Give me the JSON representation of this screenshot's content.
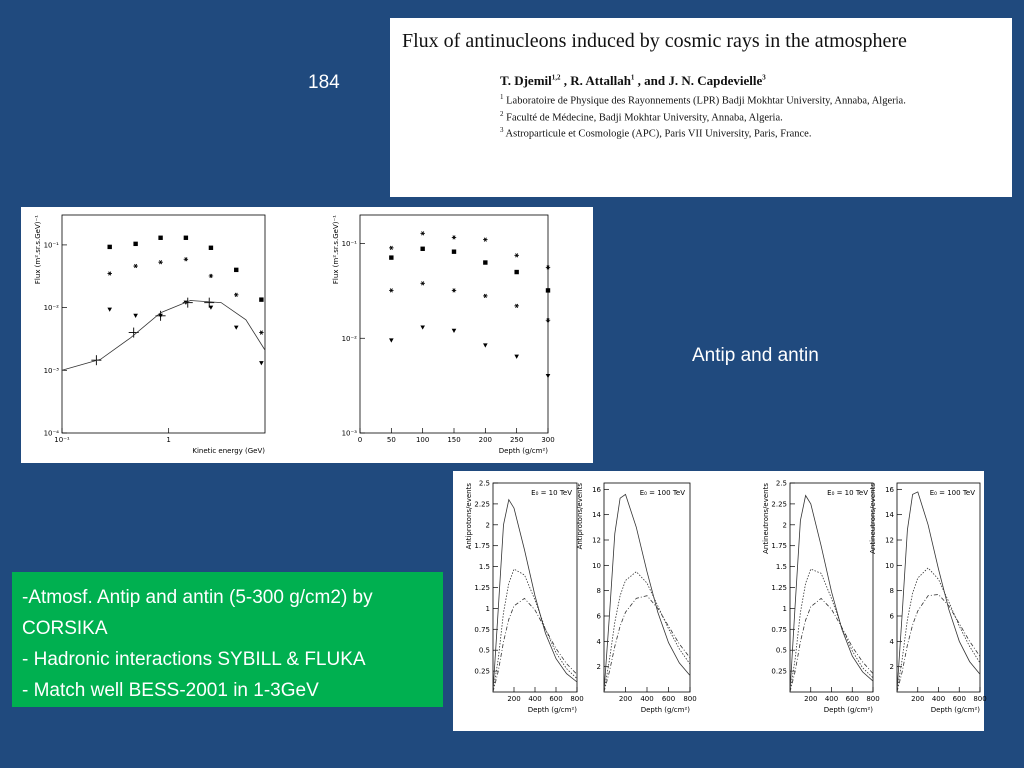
{
  "slide_number": "184",
  "paper": {
    "title": "Flux of antinucleons induced by cosmic rays in the atmosphere",
    "authors": [
      {
        "name": "T. Djemil",
        "affil": "1,2"
      },
      {
        "name": " , R. Attallah",
        "affil": "1"
      },
      {
        "name": " , and J. N. Capdevielle",
        "affil": "3"
      }
    ],
    "affiliations": [
      {
        "num": "1",
        "text": "Laboratoire de Physique des Rayonnements (LPR) Badji Mokhtar University, Annaba, Algeria."
      },
      {
        "num": "2",
        "text": "Faculté de Médecine, Badji Mokhtar University, Annaba, Algeria."
      },
      {
        "num": "3",
        "text": "Astroparticule et Cosmologie (APC), Paris VII University, Paris, France."
      }
    ]
  },
  "caption": "Antip and antin",
  "bullets": [
    "-Atmosf. Antip and antin (5-300 g/cm2) by CORSIKA",
    "- Hadronic interactions SYBILL & FLUKA",
    "- Match well BESS-2001 in 1-3GeV"
  ],
  "left_figure": {
    "plots": [
      {
        "type": "scatter",
        "xlabel": "Kinetic energy (GeV)",
        "ylabel": "Flux (m².sr.s.GeV)⁻¹",
        "xscale": "log",
        "yscale": "log",
        "xlim": [
          0.1,
          8
        ],
        "ylim": [
          0.0001,
          0.3
        ],
        "xticks": [
          {
            "value": 0.1,
            "label": "10⁻¹"
          },
          1
        ],
        "yticks": [
          {
            "value": 0.1,
            "label": "10⁻¹"
          },
          {
            "value": 0.01,
            "label": "10⁻²"
          },
          {
            "value": 0.001,
            "label": "10⁻³"
          },
          {
            "value": 0.0001,
            "label": "10⁻⁴"
          }
        ],
        "series": [
          {
            "marker": "square",
            "x": [
              0.28,
              0.49,
              0.84,
              1.45,
              2.49,
              4.3,
              7.4
            ],
            "values": [
              0.093,
              0.104,
              0.13,
              0.13,
              0.09,
              0.04,
              0.0134
            ]
          },
          {
            "marker": "star",
            "x": [
              0.28,
              0.49,
              0.84,
              1.45,
              2.49,
              4.3,
              7.4
            ],
            "values": [
              0.035,
              0.046,
              0.053,
              0.059,
              0.032,
              0.016,
              0.004
            ]
          },
          {
            "marker": "triangle",
            "x": [
              0.28,
              0.49,
              0.84,
              1.45,
              2.49,
              4.3,
              7.4
            ],
            "values": [
              0.0093,
              0.0074,
              0.0074,
              0.012,
              0.01,
              0.0048,
              0.0013
            ]
          },
          {
            "marker": "cross",
            "x": [
              0.21,
              0.47,
              0.84,
              1.51,
              2.4
            ],
            "values": [
              0.00145,
              0.004,
              0.0074,
              0.012,
              0.012
            ]
          },
          {
            "style": "solid",
            "x": [
              0.1,
              0.23,
              0.44,
              0.84,
              1.6,
              3.1,
              5.3,
              8
            ],
            "values": [
              0.001,
              0.0015,
              0.0033,
              0.0083,
              0.013,
              0.012,
              0.0064,
              0.0021
            ]
          }
        ]
      },
      {
        "type": "scatter",
        "xlabel": "Depth (g/cm²)",
        "ylabel": "Flux (m².sr.s.GeV)⁻¹",
        "xscale": "linear",
        "yscale": "log",
        "xlim": [
          0,
          300
        ],
        "ylim": [
          0.001,
          0.2
        ],
        "xticks": [
          0,
          50,
          100,
          150,
          200,
          250,
          300
        ],
        "yticks": [
          {
            "value": 0.1,
            "label": "10⁻¹"
          },
          {
            "value": 0.01,
            "label": "10⁻²"
          },
          {
            "value": 0.001,
            "label": "10⁻³"
          }
        ],
        "series": [
          {
            "marker": "star",
            "x": [
              50,
              100,
              150,
              200,
              250,
              300
            ],
            "values": [
              0.09,
              0.128,
              0.116,
              0.11,
              0.075,
              0.056
            ]
          },
          {
            "marker": "square",
            "x": [
              50,
              100,
              150,
              200,
              250,
              300
            ],
            "values": [
              0.071,
              0.088,
              0.082,
              0.063,
              0.05,
              0.032
            ]
          },
          {
            "marker": "star",
            "x": [
              50,
              100,
              150,
              200,
              250,
              300
            ],
            "values": [
              0.032,
              0.038,
              0.032,
              0.028,
              0.022,
              0.0155
            ]
          },
          {
            "marker": "triangle",
            "x": [
              50,
              100,
              150,
              200,
              250,
              300
            ],
            "values": [
              0.0095,
              0.013,
              0.012,
              0.0084,
              0.0064,
              0.004
            ]
          }
        ]
      }
    ]
  },
  "bottom_figure": {
    "plots": [
      {
        "type": "line",
        "annotation": "E₀ = 10 TeV",
        "xlabel": "Depth (g/cm²)",
        "ylabel": "Antiprotons/events",
        "xscale": "linear",
        "yscale": "linear",
        "xlim": [
          0,
          800
        ],
        "ylim": [
          0,
          2.5
        ],
        "xticks": [
          200,
          400,
          600,
          800
        ],
        "yticks": [
          0.25,
          0.5,
          0.75,
          1,
          1.25,
          1.5,
          1.75,
          2,
          2.25,
          2.5
        ],
        "series": [
          {
            "style": "solid",
            "x": [
              0,
              50,
              100,
              150,
              200,
              300,
              400,
              500,
              600,
              700,
              800
            ],
            "values": [
              0,
              1.0,
              2.0,
              2.3,
              2.2,
              1.7,
              1.15,
              0.7,
              0.4,
              0.22,
              0.12
            ]
          },
          {
            "style": "dotted",
            "x": [
              0,
              50,
              100,
              150,
              200,
              300,
              400,
              500,
              600,
              700,
              800
            ],
            "values": [
              0,
              0.4,
              0.95,
              1.3,
              1.47,
              1.4,
              1.1,
              0.75,
              0.47,
              0.28,
              0.16
            ]
          },
          {
            "style": "dashdot",
            "x": [
              0,
              50,
              100,
              150,
              200,
              300,
              400,
              500,
              600,
              700,
              800
            ],
            "values": [
              0,
              0.25,
              0.6,
              0.87,
              1.03,
              1.12,
              0.98,
              0.75,
              0.52,
              0.34,
              0.21
            ]
          }
        ]
      },
      {
        "type": "line",
        "annotation": "E₀ = 100 TeV",
        "xlabel": "Depth (g/cm²)",
        "ylabel": "Antiprotons/events",
        "xscale": "linear",
        "yscale": "linear",
        "xlim": [
          0,
          800
        ],
        "ylim": [
          0,
          16.5
        ],
        "xticks": [
          200,
          400,
          600,
          800
        ],
        "yticks": [
          2,
          4,
          6,
          8,
          10,
          12,
          14,
          16
        ],
        "series": [
          {
            "style": "solid",
            "x": [
              0,
              50,
              100,
              150,
              200,
              300,
              400,
              500,
              600,
              700,
              800
            ],
            "values": [
              0,
              6,
              12.5,
              15.3,
              15.6,
              13,
              9.5,
              6.3,
              3.9,
              2.3,
              1.3
            ]
          },
          {
            "style": "dotted",
            "x": [
              0,
              50,
              100,
              150,
              200,
              300,
              400,
              500,
              600,
              700,
              800
            ],
            "values": [
              0,
              2.5,
              5.5,
              7.6,
              8.8,
              9.5,
              8.6,
              6.8,
              5,
              3.4,
              2.2
            ]
          },
          {
            "style": "dashdot",
            "x": [
              0,
              50,
              100,
              150,
              200,
              300,
              400,
              500,
              600,
              700,
              800
            ],
            "values": [
              0,
              1.6,
              3.6,
              5.2,
              6.3,
              7.4,
              7.6,
              6.6,
              5.2,
              3.8,
              2.7
            ]
          }
        ]
      },
      {
        "type": "line",
        "annotation": "E₀ = 10 TeV",
        "xlabel": "Depth (g/cm²)",
        "ylabel": "Antineutrons/events",
        "xscale": "linear",
        "yscale": "linear",
        "xlim": [
          0,
          800
        ],
        "ylim": [
          0,
          2.5
        ],
        "xticks": [
          200,
          400,
          600,
          800
        ],
        "yticks": [
          0.25,
          0.5,
          0.75,
          1,
          1.25,
          1.5,
          1.75,
          2,
          2.25,
          2.5
        ],
        "series": [
          {
            "style": "solid",
            "x": [
              0,
              50,
              100,
              150,
              200,
              300,
              400,
              500,
              600,
              700,
              800
            ],
            "values": [
              0,
              1.05,
              2.05,
              2.35,
              2.25,
              1.75,
              1.2,
              0.75,
              0.43,
              0.24,
              0.13
            ]
          },
          {
            "style": "dotted",
            "x": [
              0,
              50,
              100,
              150,
              200,
              300,
              400,
              500,
              600,
              700,
              800
            ],
            "values": [
              0,
              0.4,
              0.95,
              1.3,
              1.47,
              1.42,
              1.12,
              0.77,
              0.49,
              0.29,
              0.17
            ]
          },
          {
            "style": "dashdot",
            "x": [
              0,
              50,
              100,
              150,
              200,
              300,
              400,
              500,
              600,
              700,
              800
            ],
            "values": [
              0,
              0.25,
              0.6,
              0.86,
              1.02,
              1.12,
              0.99,
              0.77,
              0.54,
              0.36,
              0.22
            ]
          }
        ]
      },
      {
        "type": "line",
        "annotation": "E₀ = 100 TeV",
        "xlabel": "Depth (g/cm²)",
        "ylabel": "Antineutrons/events",
        "xscale": "linear",
        "yscale": "linear",
        "xlim": [
          0,
          800
        ],
        "ylim": [
          0,
          16.5
        ],
        "xticks": [
          200,
          400,
          600,
          800
        ],
        "yticks": [
          2,
          4,
          6,
          8,
          10,
          12,
          14,
          16
        ],
        "series": [
          {
            "style": "solid",
            "x": [
              0,
              50,
              100,
              150,
              200,
              300,
              400,
              500,
              600,
              700,
              800
            ],
            "values": [
              0,
              6.2,
              12.8,
              15.6,
              15.8,
              13.2,
              9.7,
              6.5,
              4,
              2.4,
              1.4
            ]
          },
          {
            "style": "dotted",
            "x": [
              0,
              50,
              100,
              150,
              200,
              300,
              400,
              500,
              600,
              700,
              800
            ],
            "values": [
              0,
              2.6,
              5.7,
              7.8,
              9.0,
              9.8,
              8.9,
              7.1,
              5.2,
              3.6,
              2.3
            ]
          },
          {
            "style": "dashdot",
            "x": [
              0,
              50,
              100,
              150,
              200,
              300,
              400,
              500,
              600,
              700,
              800
            ],
            "values": [
              0,
              1.6,
              3.7,
              5.3,
              6.4,
              7.6,
              7.7,
              6.8,
              5.4,
              4,
              2.8
            ]
          }
        ]
      }
    ]
  }
}
